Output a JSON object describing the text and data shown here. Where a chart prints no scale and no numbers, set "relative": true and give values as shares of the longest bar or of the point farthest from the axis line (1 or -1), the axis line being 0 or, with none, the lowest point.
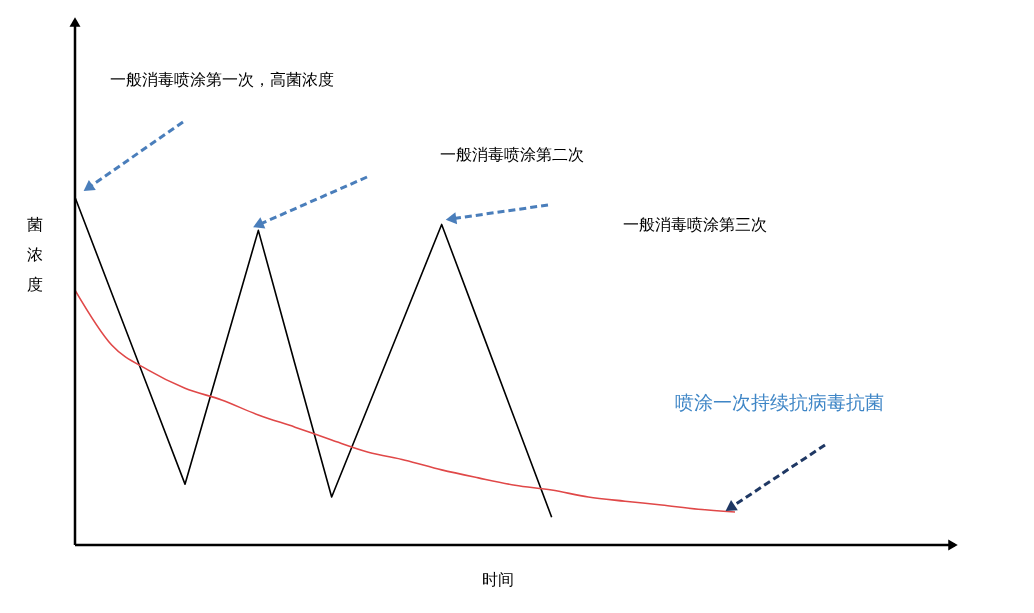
{
  "chart_data": {
    "type": "line",
    "relative": true,
    "xlabel": "时间",
    "ylabel": "菌浓度",
    "categories": [
      null,
      null,
      null,
      null,
      null,
      null,
      null,
      null,
      null,
      null,
      null,
      null,
      null,
      null,
      null,
      null,
      null,
      null,
      null
    ],
    "series": [
      {
        "color": "#000000",
        "values": [
          1.0,
          0.725,
          0.45,
          0.175,
          0.54,
          0.905,
          0.52,
          0.138,
          0.399,
          0.66,
          0.922,
          0.641,
          0.36,
          0.08,
          null,
          null,
          null,
          null,
          null
        ]
      },
      {
        "name": "喷涂一次持续抗病毒抗菌",
        "color": "#e04848",
        "values": [
          0.733,
          0.575,
          0.503,
          0.451,
          0.417,
          0.374,
          0.339,
          0.302,
          0.267,
          0.244,
          0.216,
          0.193,
          0.172,
          0.158,
          0.138,
          0.126,
          0.115,
          0.103,
          0.095
        ]
      }
    ],
    "annotations": [
      "一般消毒喷涂第一次，高菌浓度",
      "一般消毒喷涂第二次",
      "一般消毒喷涂第三次"
    ],
    "line_style": "solid"
  }
}
